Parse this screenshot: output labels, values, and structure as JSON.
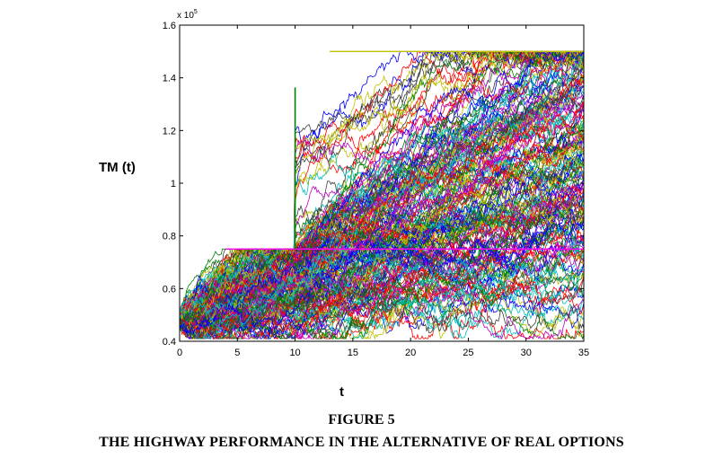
{
  "chart_data": {
    "type": "line",
    "title": "",
    "xlabel": "t",
    "ylabel": "TM (t)",
    "y_multiplier_label": "x 10",
    "y_multiplier_exponent": "5",
    "xlim": [
      0,
      35
    ],
    "ylim": [
      0.4,
      1.6
    ],
    "xticks": [
      0,
      5,
      10,
      15,
      20,
      25,
      30,
      35
    ],
    "xtick_labels": [
      "0",
      "5",
      "10",
      "15",
      "20",
      "25",
      "30",
      "35"
    ],
    "yticks": [
      0.4,
      0.6,
      0.8,
      1.0,
      1.2,
      1.4,
      1.6
    ],
    "ytick_labels": [
      "0.4",
      "0.6",
      "0.8",
      "1",
      "1.2",
      "1.4",
      "1.6"
    ],
    "grid": false,
    "legend": "none",
    "start_value": 0.48,
    "lower_cap": 0.75,
    "upper_cap": 1.5,
    "option_exercise_t": 10,
    "cap_lines": [
      {
        "from_t": 4,
        "to_t": 35,
        "value": 0.75,
        "color": "#ff00ff"
      },
      {
        "from_t": 13,
        "to_t": 35,
        "value": 1.5,
        "color": "#bfbf00"
      }
    ],
    "jump_line": {
      "t": 10,
      "from": 0.75,
      "to": 1.5,
      "color": "#007f00"
    },
    "series_colors": [
      "#0000ff",
      "#007f00",
      "#ff0000",
      "#00bfbf",
      "#bf00bf",
      "#bfbf00",
      "#3f3f3f"
    ],
    "num_simulated_paths": 200
  },
  "captions": {
    "figure_number": "FIGURE 5",
    "figure_title": "THE HIGHWAY PERFORMANCE IN THE ALTERNATIVE OF REAL OPTIONS"
  }
}
